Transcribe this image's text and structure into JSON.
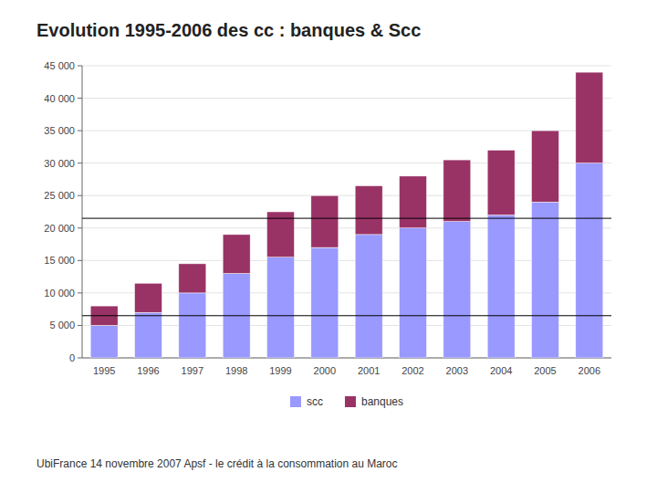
{
  "chart_data": {
    "type": "bar",
    "title": "Evolution 1995-2006 des cc : banques & Scc",
    "subtitle": "UbiFrance 14 novembre 2007  Apsf - le crédit à la consommation au Maroc",
    "categories": [
      "1995",
      "1996",
      "1997",
      "1998",
      "1999",
      "2000",
      "2001",
      "2002",
      "2003",
      "2004",
      "2005",
      "2006"
    ],
    "series": [
      {
        "name": "scc",
        "color": "#9999FF",
        "values": [
          5000,
          7000,
          10000,
          13000,
          15500,
          17000,
          19000,
          20000,
          21000,
          22000,
          24000,
          30000
        ]
      },
      {
        "name": "banques",
        "color": "#993366",
        "values": [
          3000,
          4500,
          4500,
          6000,
          7000,
          8000,
          7500,
          8000,
          9500,
          10000,
          11000,
          14000
        ]
      }
    ],
    "stacked": true,
    "ylim": [
      0,
      45000
    ],
    "yticks": [
      0,
      {
        "value": 5000,
        "label": "5 000"
      },
      {
        "value": 10000,
        "label": "10 000"
      },
      {
        "value": 15000,
        "label": "15 000"
      },
      {
        "value": 20000,
        "label": "20 000"
      },
      {
        "value": 25000,
        "label": "25 000"
      },
      {
        "value": 30000,
        "label": "30 000"
      },
      {
        "value": 35000,
        "label": "35 000"
      },
      {
        "value": 40000,
        "label": "40 000"
      },
      {
        "value": 45000,
        "label": "45 000"
      }
    ],
    "grid": true,
    "legend": "bottom",
    "reference_lines": [
      6500,
      21500
    ]
  }
}
